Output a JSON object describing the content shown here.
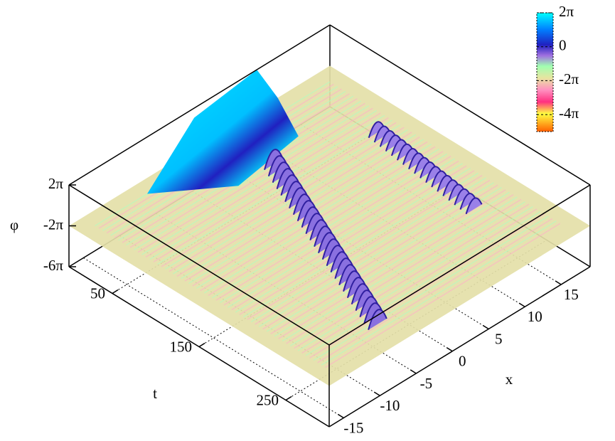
{
  "chart_data": {
    "type": "surface3d",
    "xlabel": "x",
    "ylabel": "t",
    "zlabel": "φ",
    "xlim": [
      -17,
      19
    ],
    "xticks": [
      -15,
      -10,
      -5,
      0,
      5,
      10,
      15
    ],
    "tlim": [
      0,
      300
    ],
    "tticks": [
      50,
      150,
      250
    ],
    "zlim": [
      -18.85,
      6.283
    ],
    "zticks": [
      {
        "value": 6.283,
        "label": "2π"
      },
      {
        "value": -6.283,
        "label": "-2π"
      },
      {
        "value": -18.85,
        "label": "-6π"
      }
    ],
    "clim": [
      -15.708,
      6.283
    ],
    "cticks": [
      {
        "value": 6.283,
        "label": "2π"
      },
      {
        "value": 0,
        "label": "0"
      },
      {
        "value": -6.283,
        "label": "-2π"
      },
      {
        "value": -12.566,
        "label": "-4π"
      }
    ],
    "grid": true
  }
}
